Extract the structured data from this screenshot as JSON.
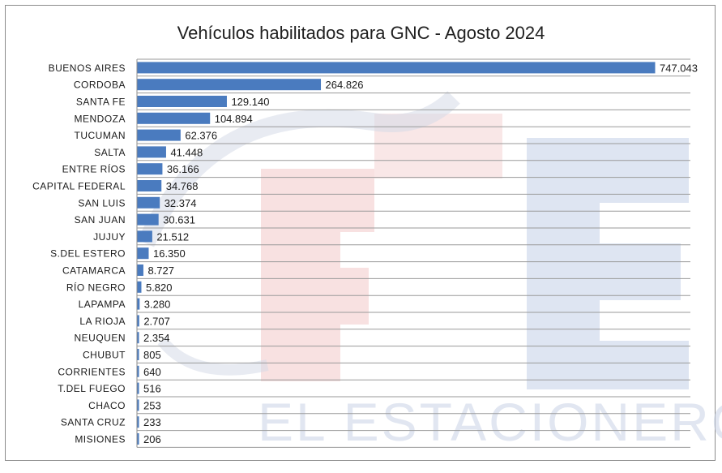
{
  "chart_data": {
    "type": "bar",
    "orientation": "horizontal",
    "title": "Vehículos habilitados para GNC - Agosto 2024",
    "categories": [
      "BUENOS AIRES",
      "CORDOBA",
      "SANTA FE",
      "MENDOZA",
      "TUCUMAN",
      "SALTA",
      "ENTRE RÍOS",
      "CAPITAL FEDERAL",
      "SAN LUIS",
      "SAN JUAN",
      "JUJUY",
      "S.DEL ESTERO",
      "CATAMARCA",
      "RÍO NEGRO",
      "LAPAMPA",
      "LA RIOJA",
      "NEUQUEN",
      "CHUBUT",
      "CORRIENTES",
      "T.DEL FUEGO",
      "CHACO",
      "SANTA CRUZ",
      "MISIONES"
    ],
    "values": [
      747043,
      264826,
      129140,
      104894,
      62376,
      41448,
      36166,
      34768,
      32374,
      30631,
      21512,
      16350,
      8727,
      5820,
      3280,
      2707,
      2354,
      805,
      640,
      516,
      253,
      233,
      206
    ],
    "value_labels": [
      "747.043",
      "264.826",
      "129.140",
      "104.894",
      "62.376",
      "41.448",
      "36.166",
      "34.768",
      "32.374",
      "30.631",
      "21.512",
      "16.350",
      "8.727",
      "5.820",
      "3.280",
      "2.707",
      "2.354",
      "805",
      "640",
      "516",
      "253",
      "233",
      "206"
    ],
    "xlim": [
      0,
      800000
    ],
    "grid": "horizontal",
    "bar_color": "#4a7bbf"
  },
  "watermark": {
    "text": "EL ESTACIONERO"
  }
}
